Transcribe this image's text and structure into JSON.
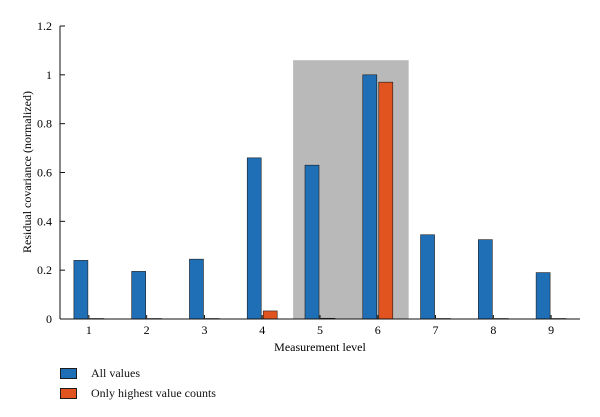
{
  "chart_data": {
    "type": "bar",
    "categories": [
      "1",
      "2",
      "3",
      "4",
      "5",
      "6",
      "7",
      "8",
      "9"
    ],
    "series": [
      {
        "name": "All values",
        "color": "#1f6fb7",
        "values": [
          0.24,
          0.195,
          0.245,
          0.66,
          0.63,
          1.0,
          0.345,
          0.325,
          0.19
        ]
      },
      {
        "name": "Only highest value counts",
        "color": "#e2541f",
        "values": [
          0.002,
          0.002,
          0.002,
          0.033,
          0.003,
          0.97,
          0.002,
          0.002,
          0.002
        ]
      }
    ],
    "highlight": {
      "from_category": "5",
      "to_category": "6",
      "color": "#b9b9b9"
    },
    "xlabel": "Measurement level",
    "ylabel": "Residual covariance (normalized)",
    "ylim": [
      0,
      1.2
    ],
    "yticks": [
      "0",
      "0.2",
      "0.4",
      "0.6",
      "0.8",
      "1",
      "1.2"
    ],
    "grid": false,
    "legend_position": "bottom-left"
  }
}
